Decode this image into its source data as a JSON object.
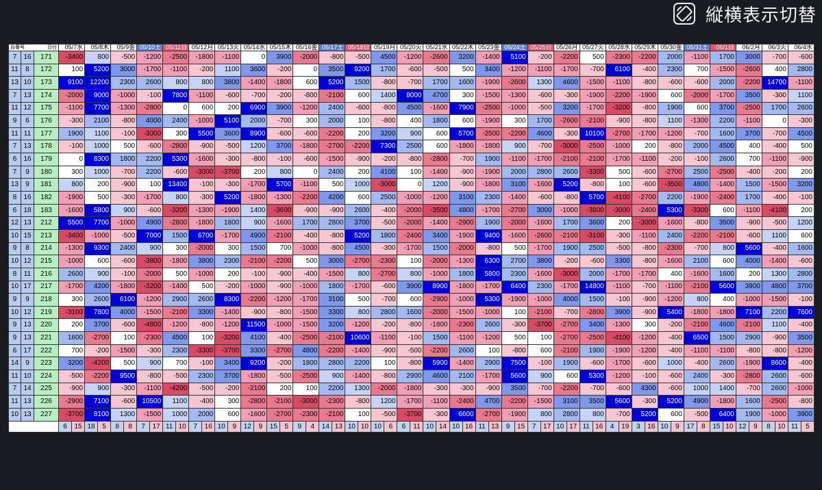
{
  "toggle": {
    "label": "縦横表示切替",
    "icon": "rotate-screen-icon"
  },
  "header": {
    "corner_top": "日付",
    "corner_bottom": "台番号"
  },
  "dates": [
    {
      "label": "05/7水",
      "type": "weekday"
    },
    {
      "label": "05/8木",
      "type": "weekday"
    },
    {
      "label": "05/9金",
      "type": "weekday"
    },
    {
      "label": "05/10土",
      "type": "sat"
    },
    {
      "label": "05/11日",
      "type": "sun"
    },
    {
      "label": "05/12月",
      "type": "weekday"
    },
    {
      "label": "05/13火",
      "type": "weekday"
    },
    {
      "label": "05/14水",
      "type": "weekday"
    },
    {
      "label": "05/15木",
      "type": "weekday"
    },
    {
      "label": "05/16金",
      "type": "weekday"
    },
    {
      "label": "05/17土",
      "type": "sat"
    },
    {
      "label": "05/18日",
      "type": "sun"
    },
    {
      "label": "05/19月",
      "type": "weekday"
    },
    {
      "label": "05/20火",
      "type": "weekday"
    },
    {
      "label": "05/21水",
      "type": "weekday"
    },
    {
      "label": "05/22木",
      "type": "weekday"
    },
    {
      "label": "05/23金",
      "type": "weekday"
    },
    {
      "label": "05/24土",
      "type": "sat"
    },
    {
      "label": "05/25日",
      "type": "sun"
    },
    {
      "label": "05/26月",
      "type": "weekday"
    },
    {
      "label": "05/27火",
      "type": "weekday"
    },
    {
      "label": "05/28水",
      "type": "weekday"
    },
    {
      "label": "05/29木",
      "type": "weekday"
    },
    {
      "label": "05/30金",
      "type": "weekday"
    },
    {
      "label": "05/31土",
      "type": "sat"
    },
    {
      "label": "06/1日",
      "type": "sun"
    },
    {
      "label": "06/2月",
      "type": "weekday"
    },
    {
      "label": "06/3火",
      "type": "weekday"
    },
    {
      "label": "06/4水",
      "type": "weekday"
    }
  ],
  "rows": [
    {
      "a": "7",
      "b": "16",
      "id": "171",
      "v": [
        "-3400",
        "800",
        "-500",
        "-1200",
        "-2500",
        "-1800",
        "-1100",
        "0",
        "3900",
        "-2000",
        "-800",
        "-500",
        "4500",
        "-1200",
        "-2600",
        "3200",
        "-1400",
        "5100",
        "-200",
        "-2200",
        "500",
        "-2300",
        "-2200",
        "2000",
        "-1100",
        "1700",
        "3000",
        "-700",
        "-600"
      ]
    },
    {
      "a": "11",
      "b": "8",
      "id": "172",
      "v": [
        "100",
        "5200",
        "3000",
        "-1700",
        "-1100",
        "-200",
        "1100",
        "3600",
        "-200",
        "0",
        "3500",
        "9200",
        "1700",
        "-600",
        "-500",
        "500",
        "3400",
        "-1200",
        "-1100",
        "-1700",
        "-700",
        "6100",
        "-400",
        "2300",
        "700",
        "-1500",
        "-2600",
        "400",
        "2800"
      ]
    },
    {
      "a": "13",
      "b": "10",
      "id": "173",
      "v": [
        "9100",
        "12200",
        "2300",
        "2600",
        "800",
        "800",
        "3800",
        "-1400",
        "-1800",
        "600",
        "5200",
        "1500",
        "-800",
        "-700",
        "1700",
        "1600",
        "-1900",
        "-2600",
        "1300",
        "4600",
        "-1500",
        "-1100",
        "-800",
        "-600",
        "-600",
        "2000",
        "-2200",
        "14700",
        "-1100"
      ]
    },
    {
      "a": "7",
      "b": "13",
      "id": "174",
      "v": [
        "-2000",
        "9000",
        "-1000",
        "-100",
        "7800",
        "-1100",
        "-600",
        "-700",
        "-200",
        "-800",
        "-2100",
        "600",
        "1400",
        "8000",
        "4700",
        "300",
        "-1500",
        "-1300",
        "-600",
        "-300",
        "-1900",
        "-2200",
        "-1900",
        "600",
        "-2000",
        "-1700",
        "3500",
        "-300",
        "1100"
      ]
    },
    {
      "a": "11",
      "b": "12",
      "id": "175",
      "v": [
        "-1100",
        "7700",
        "-1300",
        "-2800",
        "0",
        "600",
        "200",
        "6900",
        "3900",
        "-1200",
        "2400",
        "-600",
        "-800",
        "4500",
        "-1600",
        "7900",
        "-2500",
        "-1000",
        "-500",
        "3200",
        "-1700",
        "-3200",
        "-800",
        "1900",
        "600",
        "3700",
        "-2500",
        "1700",
        "2600"
      ]
    },
    {
      "a": "9",
      "b": "6",
      "id": "176",
      "v": [
        "-300",
        "2100",
        "-800",
        "4000",
        "2400",
        "-1000",
        "5100",
        "2000",
        "-700",
        "300",
        "2000",
        "100",
        "-800",
        "400",
        "1800",
        "600",
        "-1900",
        "300",
        "1700",
        "-2600",
        "-2100",
        "-900",
        "-800",
        "1100",
        "-1300",
        "2200",
        "-1100",
        "0",
        "-300"
      ]
    },
    {
      "a": "11",
      "b": "11",
      "id": "177",
      "v": [
        "1900",
        "1100",
        "-100",
        "-3000",
        "300",
        "5500",
        "3600",
        "8900",
        "-600",
        "-600",
        "-2200",
        "200",
        "3200",
        "900",
        "600",
        "5700",
        "-2500",
        "-2200",
        "4600",
        "-300",
        "10100",
        "-2700",
        "-1700",
        "-1200",
        "-700",
        "1600",
        "3700",
        "-700",
        "4500"
      ]
    },
    {
      "a": "7",
      "b": "13",
      "id": "178",
      "v": [
        "-100",
        "1000",
        "500",
        "-600",
        "-2800",
        "-900",
        "-500",
        "1200",
        "3700",
        "-1800",
        "-2700",
        "-2200",
        "7300",
        "2500",
        "600",
        "-1800",
        "-1800",
        "900",
        "-700",
        "-3000",
        "-2500",
        "-1000",
        "200",
        "-800",
        "2000",
        "4500",
        "400",
        "-400",
        "500"
      ]
    },
    {
      "a": "6",
      "b": "16",
      "id": "179",
      "v": [
        "0",
        "8300",
        "1800",
        "2200",
        "5300",
        "-1600",
        "-300",
        "-800",
        "-100",
        "-600",
        "-1500",
        "-900",
        "-200",
        "-800",
        "-2800",
        "-700",
        "1900",
        "-1100",
        "-1700",
        "-2100",
        "-2100",
        "-1700",
        "-1100",
        "-200",
        "-100",
        "2600",
        "700",
        "-1100",
        "-900"
      ]
    },
    {
      "a": "7",
      "b": "9",
      "id": "180",
      "v": [
        "300",
        "1000",
        "-700",
        "2200",
        "-600",
        "-3000",
        "-3700",
        "200",
        "800",
        "0",
        "2400",
        "200",
        "4100",
        "100",
        "-1400",
        "-900",
        "-1900",
        "2000",
        "2800",
        "2600",
        "-3300",
        "500",
        "-600",
        "-2700",
        "2500",
        "-2500",
        "-400",
        "-200",
        "200"
      ]
    },
    {
      "a": "13",
      "b": "9",
      "id": "181",
      "v": [
        "800",
        "200",
        "-900",
        "100",
        "13400",
        "-100",
        "-300",
        "-1700",
        "5700",
        "-1100",
        "500",
        "1000",
        "-3000",
        "0",
        "1200",
        "-900",
        "-1800",
        "3100",
        "-1600",
        "5200",
        "-800",
        "100",
        "-600",
        "-3500",
        "4800",
        "-1400",
        "1500",
        "-1500",
        "3200"
      ]
    },
    {
      "a": "8",
      "b": "16",
      "id": "182",
      "v": [
        "-1900",
        "500",
        "-300",
        "-1700",
        "800",
        "-300",
        "5200",
        "-1800",
        "-1300",
        "-2200",
        "4200",
        "600",
        "2500",
        "-1000",
        "-1200",
        "3100",
        "2300",
        "-1400",
        "-600",
        "-800",
        "5700",
        "-4100",
        "-2700",
        "2200",
        "-1900",
        "-2400",
        "1700",
        "-400",
        "-100"
      ]
    },
    {
      "a": "6",
      "b": "18",
      "id": "183",
      "v": [
        "-1600",
        "5800",
        "900",
        "-600",
        "-3200",
        "-1300",
        "-1900",
        "1400",
        "-3600",
        "-900",
        "-900",
        "2600",
        "-400",
        "-2000",
        "-3500",
        "4800",
        "-1700",
        "-2700",
        "3000",
        "-1000",
        "-3800",
        "-3000",
        "-2400",
        "5300",
        "-3300",
        "600",
        "-1100",
        "-4100",
        "200"
      ]
    },
    {
      "a": "12",
      "b": "13",
      "id": "212",
      "v": [
        "5500",
        "7700",
        "-1000",
        "4900",
        "-2800",
        "-1800",
        "1800",
        "900",
        "-1600",
        "1700",
        "2800",
        "3700",
        "-500",
        "-2000",
        "-1400",
        "-2900",
        "1900",
        "-2000",
        "-1600",
        "1700",
        "3600",
        "200",
        "-3000",
        "-1600",
        "-800",
        "3500",
        "-900",
        "-500",
        "1200"
      ]
    },
    {
      "a": "10",
      "b": "15",
      "id": "213",
      "v": [
        "-3400",
        "-1000",
        "-500",
        "7000",
        "1500",
        "6700",
        "-1700",
        "4900",
        "-2100",
        "-400",
        "-800",
        "5200",
        "1800",
        "-2400",
        "3400",
        "-1900",
        "9400",
        "-1600",
        "-2600",
        "-2100",
        "-3100",
        "-300",
        "-1100",
        "2400",
        "-2200",
        "-2100",
        "-600",
        "1100",
        "600"
      ]
    },
    {
      "a": "9",
      "b": "8",
      "id": "214",
      "v": [
        "-1300",
        "9300",
        "2400",
        "900",
        "300",
        "-2000",
        "300",
        "1500",
        "700",
        "-1000",
        "-800",
        "4500",
        "-300",
        "-1700",
        "1500",
        "-2000",
        "-800",
        "500",
        "-1700",
        "1900",
        "2500",
        "-500",
        "-800",
        "-2300",
        "-700",
        "800",
        "5600",
        "-400",
        "1600"
      ]
    },
    {
      "a": "10",
      "b": "12",
      "id": "215",
      "v": [
        "-1000",
        "600",
        "-600",
        "-3800",
        "-1800",
        "3800",
        "2300",
        "-2100",
        "-2200",
        "500",
        "3000",
        "-2700",
        "-2300",
        "100",
        "-2000",
        "-1300",
        "6300",
        "2700",
        "3800",
        "-200",
        "-600",
        "3300",
        "-800",
        "-1600",
        "2100",
        "600",
        "4000",
        "-1400",
        "-600"
      ]
    },
    {
      "a": "8",
      "b": "11",
      "id": "216",
      "v": [
        "2600",
        "900",
        "-100",
        "-2000",
        "500",
        "-1000",
        "200",
        "-100",
        "-900",
        "-400",
        "-1500",
        "800",
        "-2700",
        "800",
        "-1000",
        "1800",
        "5800",
        "2300",
        "-1600",
        "-3000",
        "2000",
        "-1700",
        "-1700",
        "400",
        "-1600",
        "1600",
        "200",
        "1300",
        "2800"
      ]
    },
    {
      "a": "10",
      "b": "17",
      "id": "217",
      "v": [
        "-1700",
        "4200",
        "-1800",
        "-3200",
        "-1400",
        "500",
        "-200",
        "-1000",
        "-900",
        "-1000",
        "1800",
        "-1700",
        "-600",
        "3900",
        "8900",
        "-1800",
        "-1700",
        "6400",
        "2300",
        "-1700",
        "14800",
        "-1100",
        "-700",
        "-1100",
        "-2100",
        "5600",
        "3900",
        "4800",
        "3700"
      ]
    },
    {
      "a": "9",
      "b": "9",
      "id": "218",
      "v": [
        "300",
        "2600",
        "6100",
        "-1200",
        "2900",
        "2600",
        "8300",
        "-2200",
        "-1200",
        "-1700",
        "3100",
        "500",
        "-700",
        "600",
        "-2900",
        "-1000",
        "5300",
        "-1900",
        "-1000",
        "4000",
        "1500",
        "-100",
        "-900",
        "-1200",
        "800",
        "400",
        "-1000",
        "-1500",
        "-100"
      ]
    },
    {
      "a": "10",
      "b": "12",
      "id": "219",
      "v": [
        "-3100",
        "7800",
        "4000",
        "-1500",
        "-2100",
        "3300",
        "-1400",
        "-900",
        "-800",
        "-1500",
        "3300",
        "800",
        "2800",
        "1600",
        "-2000",
        "-1500",
        "-1000",
        "100",
        "-2100",
        "-700",
        "-2800",
        "3900",
        "-900",
        "5400",
        "-1800",
        "-1800",
        "7100",
        "2200",
        "7600"
      ]
    },
    {
      "a": "9",
      "b": "13",
      "id": "220",
      "v": [
        "200",
        "3700",
        "-600",
        "-4800",
        "-1200",
        "-800",
        "-1200",
        "11500",
        "-1000",
        "-1500",
        "3200",
        "-1200",
        "-200",
        "-800",
        "-1800",
        "-2300",
        "2600",
        "-300",
        "-3700",
        "-2700",
        "3400",
        "-1300",
        "300",
        "-200",
        "-2100",
        "4600",
        "-2100",
        "1100",
        "-400"
      ]
    },
    {
      "a": "9",
      "b": "13",
      "id": "221",
      "v": [
        "1600",
        "-2700",
        "100",
        "-2300",
        "4500",
        "100",
        "-3200",
        "4100",
        "-400",
        "-2500",
        "-2100",
        "10600",
        "-1100",
        "-100",
        "1500",
        "-1100",
        "-1200",
        "500",
        "100",
        "-2700",
        "-2500",
        "-4100",
        "-1200",
        "-400",
        "6500",
        "1500",
        "2900",
        "-900",
        "3500"
      ]
    },
    {
      "a": "6",
      "b": "17",
      "id": "222",
      "v": [
        "700",
        "-200",
        "-1500",
        "-300",
        "2300",
        "-3300",
        "-3700",
        "3300",
        "-2700",
        "4800",
        "-2200",
        "-1400",
        "-900",
        "-500",
        "-2200",
        "2600",
        "100",
        "-800",
        "600",
        "-2100",
        "1900",
        "-1900",
        "-1200",
        "-400",
        "-1100",
        "-1100",
        "-800",
        "-800",
        "-1200"
      ]
    },
    {
      "a": "14",
      "b": "9",
      "id": "223",
      "v": [
        "3200",
        "-4200",
        "500",
        "900",
        "700",
        "-100",
        "3400",
        "9200",
        "-200",
        "1800",
        "2800",
        "2200",
        "100",
        "-800",
        "5900",
        "-1400",
        "2900",
        "7500",
        "-100",
        "1900",
        "-600",
        "-1700",
        "-600",
        "1000",
        "-400",
        "2600",
        "-1900",
        "8600",
        "-400"
      ]
    },
    {
      "a": "11",
      "b": "10",
      "id": "224",
      "v": [
        "-500",
        "-2200",
        "9500",
        "-800",
        "-500",
        "2300",
        "3700",
        "-1800",
        "-500",
        "-2500",
        "900",
        "-1400",
        "-800",
        "2900",
        "4600",
        "2100",
        "-1700",
        "5600",
        "900",
        "600",
        "5300",
        "-1200",
        "-100",
        "-600",
        "2400",
        "-300",
        "-2800",
        "2600",
        "-600"
      ]
    },
    {
      "a": "7",
      "b": "14",
      "id": "225",
      "v": [
        "-900",
        "900",
        "-300",
        "-1100",
        "-4200",
        "-500",
        "-200",
        "-2100",
        "200",
        "100",
        "2200",
        "1300",
        "-2000",
        "-1800",
        "-300",
        "-300",
        "-900",
        "3500",
        "-700",
        "-2200",
        "-700",
        "-600",
        "4300",
        "-600",
        "1000",
        "1400",
        "-700",
        "2600",
        "-1000"
      ]
    },
    {
      "a": "11",
      "b": "13",
      "id": "226",
      "v": [
        "-2900",
        "7100",
        "-600",
        "10500",
        "1100",
        "-400",
        "300",
        "-2800",
        "-2100",
        "-3000",
        "-2300",
        "-800",
        "1200",
        "-1700",
        "-1100",
        "-2400",
        "4700",
        "-2200",
        "-1500",
        "3100",
        "3500",
        "5600",
        "-300",
        "5200",
        "4900",
        "-1800",
        "1600",
        "-2500",
        "-800"
      ]
    },
    {
      "a": "10",
      "b": "13",
      "id": "227",
      "v": [
        "-3700",
        "8100",
        "1300",
        "-1500",
        "1000",
        "2000",
        "600",
        "-1600",
        "-2700",
        "-2300",
        "-2100",
        "100",
        "-500",
        "-3700",
        "-300",
        "6600",
        "-2700",
        "-1900",
        "800",
        "2800",
        "800",
        "-700",
        "5200",
        "600",
        "-500",
        "6400",
        "1900",
        "-1000",
        "3900"
      ]
    }
  ],
  "footer": [
    [
      "6",
      "15"
    ],
    [
      "18",
      "5"
    ],
    [
      "8",
      "8"
    ],
    [
      "7",
      "17"
    ],
    [
      "11",
      "10"
    ],
    [
      "7",
      "16"
    ],
    [
      "10",
      "9"
    ],
    [
      "12",
      "9"
    ],
    [
      "15",
      "5"
    ],
    [
      "9",
      "4"
    ],
    [
      "14",
      "13"
    ],
    [
      "10",
      "10"
    ],
    [
      "10",
      "6"
    ],
    [
      "6",
      "11"
    ],
    [
      "10",
      "14"
    ],
    [
      "10",
      "16"
    ],
    [
      "11",
      "13"
    ],
    [
      "9",
      "15"
    ],
    [
      "7",
      "17"
    ],
    [
      "10",
      "17"
    ],
    [
      "11",
      "16"
    ],
    [
      "4",
      "19"
    ],
    [
      "3",
      "16"
    ],
    [
      "10",
      "9"
    ],
    [
      "17",
      "8"
    ],
    [
      "15",
      "10"
    ],
    [
      "12",
      "9"
    ],
    [
      "8",
      "10"
    ],
    [
      "11",
      "5"
    ]
  ],
  "colors": {
    "background": "#1b1c21",
    "white": "#ffffff",
    "cat_a": "#b7cbee",
    "cat_b": "#b7eec2",
    "hdr_sat": "#5b7bd6",
    "hdr_sun": "#e8536f",
    "weekday_hdr": "#ffffff",
    "foot_pos": "#c3d2ef",
    "foot_neg": "#f3c3d0",
    "pos_light": "#c7d3f5",
    "pos_mid": "#a3b9f0",
    "pos_dark": "#7f98ec",
    "pos_strong": "#0000d9",
    "neg_light": "#f6c6d3",
    "neg_mid": "#f09fb6",
    "neg_dark": "#e8798f",
    "neg_strong": "#d94a65"
  }
}
